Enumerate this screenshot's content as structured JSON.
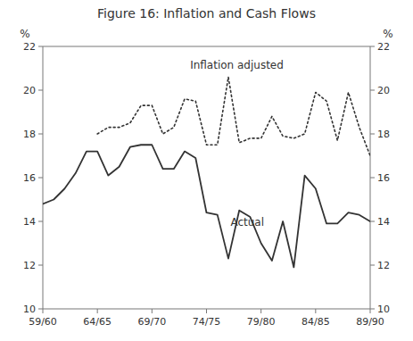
{
  "chart_data": {
    "type": "line",
    "title": "Figure 16: Inflation and Cash Flows",
    "ylabel": "%",
    "y2label": "%",
    "xlim": [
      0,
      30
    ],
    "xticks": [
      {
        "value": 0,
        "label": "59/60"
      },
      {
        "value": 5,
        "label": "64/65"
      },
      {
        "value": 10,
        "label": "69/70"
      },
      {
        "value": 15,
        "label": "74/75"
      },
      {
        "value": 20,
        "label": "79/80"
      },
      {
        "value": 25,
        "label": "84/85"
      },
      {
        "value": 30,
        "label": "89/90"
      }
    ],
    "ylim": [
      10,
      22
    ],
    "yticks": [
      10,
      12,
      14,
      16,
      18,
      20,
      22
    ],
    "y2lim": [
      10,
      22
    ],
    "y2ticks": [
      10,
      12,
      14,
      16,
      18,
      20,
      22
    ],
    "grid": false,
    "series": [
      {
        "color": "#333333",
        "line_style": "solid",
        "x": [
          0,
          1,
          2,
          3,
          4,
          5,
          6,
          7,
          8,
          9,
          10,
          11,
          12,
          13,
          14,
          15,
          16,
          17,
          18,
          19,
          20,
          21,
          22,
          23,
          24,
          25,
          26,
          27,
          28,
          29,
          30
        ],
        "values": [
          14.8,
          15.0,
          15.5,
          16.2,
          17.2,
          17.2,
          16.1,
          16.5,
          17.4,
          17.5,
          17.5,
          16.4,
          16.4,
          17.2,
          16.9,
          14.4,
          14.3,
          12.3,
          14.5,
          14.2,
          13.0,
          12.2,
          14.0,
          11.9,
          16.1,
          15.5,
          13.9,
          13.9,
          14.4,
          14.3,
          14.0
        ]
      },
      {
        "color": "#333333",
        "line_style": "dotted",
        "x": [
          5,
          6,
          7,
          8,
          9,
          10,
          11,
          12,
          13,
          14,
          15,
          16,
          17,
          18,
          19,
          20,
          21,
          22,
          23,
          24,
          25,
          26,
          27,
          28,
          29,
          30
        ],
        "values": [
          18.0,
          18.3,
          18.3,
          18.5,
          19.3,
          19.3,
          18.0,
          18.3,
          19.6,
          19.5,
          17.5,
          17.5,
          20.6,
          17.6,
          17.8,
          17.8,
          18.8,
          17.9,
          17.8,
          18.0,
          19.9,
          19.5,
          17.7,
          19.9,
          18.3,
          17.0
        ]
      }
    ],
    "annotations": [
      {
        "text": "Actual",
        "x": 17.2,
        "y": 13.8,
        "color": "#333333"
      },
      {
        "text": "Inflation adjusted",
        "x": 13.5,
        "y": 21.0,
        "color": "#333333"
      }
    ]
  }
}
